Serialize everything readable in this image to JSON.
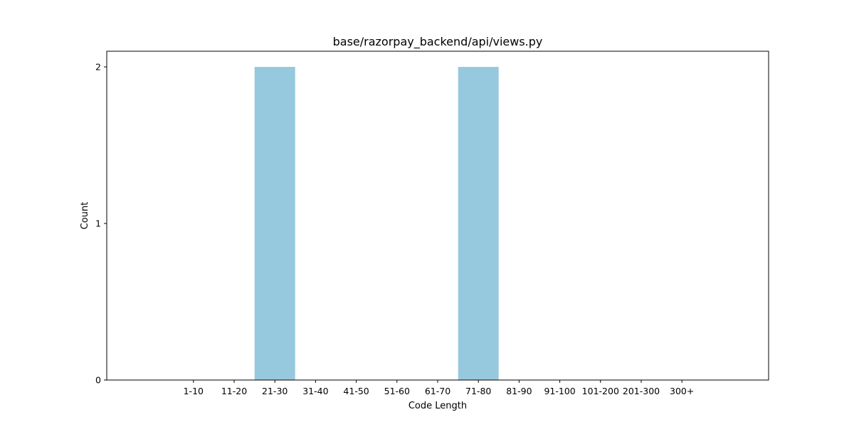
{
  "chart_data": {
    "type": "bar",
    "title": "base/razorpay_backend/api/views.py",
    "xlabel": "Code Length",
    "ylabel": "Count",
    "categories": [
      "1-10",
      "11-20",
      "21-30",
      "31-40",
      "41-50",
      "51-60",
      "61-70",
      "71-80",
      "81-90",
      "91-100",
      "101-200",
      "201-300",
      "300+"
    ],
    "values": [
      0,
      0,
      2,
      0,
      0,
      0,
      0,
      2,
      0,
      0,
      0,
      0,
      0
    ],
    "ylim": [
      0,
      2.1
    ],
    "yticks": [
      0,
      1,
      2
    ],
    "bar_color": "#96c9de",
    "grid": false,
    "legend": "none"
  }
}
